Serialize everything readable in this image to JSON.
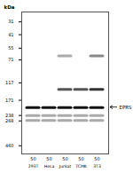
{
  "chart_data": {
    "type": "gel",
    "categories": [
      "293T",
      "HeLa",
      "Jurkat",
      "TCMK",
      "3T3"
    ],
    "ug": [
      50,
      50,
      50,
      50,
      50
    ],
    "ylabel": "kDa",
    "log": "y",
    "ylim": [
      550,
      25
    ],
    "yticks": [
      460,
      268,
      238,
      171,
      117,
      71,
      55,
      41,
      31
    ],
    "series": [
      {
        "color": "#111111",
        "values": [
          200,
          200,
          200,
          200,
          200
        ]
      },
      {
        "color": "#555555",
        "values": [
          null,
          null,
          135,
          135,
          null
        ]
      },
      {
        "color": "#333333",
        "values": [
          null,
          null,
          null,
          null,
          135
        ]
      },
      {
        "color": "#aaaaaa",
        "values": [
          265,
          265,
          265,
          265,
          265
        ]
      },
      {
        "color": "#aaaaaa",
        "values": [
          238,
          238,
          238,
          238,
          238
        ]
      },
      {
        "color": "#aaaaaa",
        "values": [
          null,
          null,
          65,
          null,
          null
        ]
      },
      {
        "color": "#888888",
        "values": [
          null,
          null,
          null,
          null,
          65
        ]
      }
    ],
    "annotations": [
      {
        "text": "EPRS",
        "y": 200
      }
    ]
  }
}
